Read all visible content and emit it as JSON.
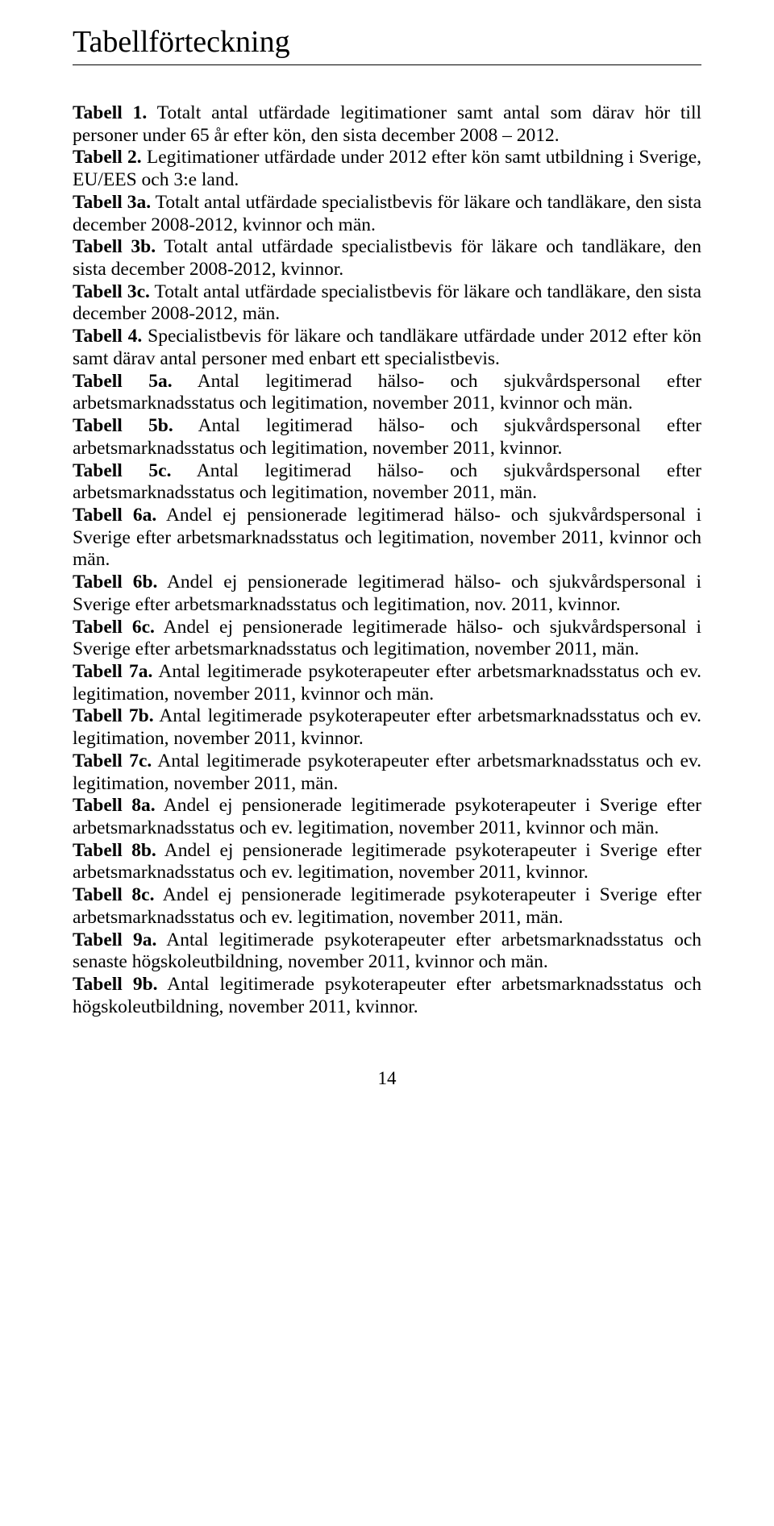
{
  "title": "Tabellförteckning",
  "entries": [
    {
      "label": "Tabell 1.",
      "text": " Totalt antal utfärdade legitimationer samt antal som därav hör till personer under 65 år efter kön, den sista december 2008 – 2012."
    },
    {
      "label": "Tabell 2.",
      "text": " Legitimationer utfärdade under 2012 efter kön samt utbildning i Sverige, EU/EES och 3:e land."
    },
    {
      "label": "Tabell 3a.",
      "text": " Totalt antal utfärdade specialistbevis för läkare och tandläkare, den sista december 2008-2012, kvinnor och män."
    },
    {
      "label": "Tabell 3b.",
      "text": " Totalt antal utfärdade specialistbevis för läkare och tandläkare, den sista december 2008-2012, kvinnor."
    },
    {
      "label": "Tabell 3c.",
      "text": " Totalt antal utfärdade specialistbevis för läkare och tandläkare, den sista december 2008-2012, män."
    },
    {
      "label": "Tabell 4.",
      "text": " Specialistbevis för läkare och tandläkare utfärdade under 2012 efter kön samt därav antal personer med enbart ett specialistbevis."
    },
    {
      "label": "Tabell 5a.",
      "text": " Antal legitimerad hälso- och sjukvårdspersonal efter arbetsmarknadsstatus och legitimation, november 2011, kvinnor och män."
    },
    {
      "label": "Tabell 5b.",
      "text": " Antal legitimerad hälso- och sjukvårdspersonal efter arbetsmarknadsstatus och legitimation, november 2011, kvinnor."
    },
    {
      "label": "Tabell 5c.",
      "text": " Antal legitimerad hälso- och sjukvårdspersonal efter arbetsmarknadsstatus och legitimation, november 2011, män."
    },
    {
      "label": "Tabell 6a.",
      "text": " Andel ej pensionerade legitimerad hälso- och sjukvårdspersonal i Sverige efter arbetsmarknadsstatus och legitimation, november 2011, kvinnor och män."
    },
    {
      "label": "Tabell 6b.",
      "text": " Andel ej pensionerade legitimerad hälso- och sjukvårdspersonal i Sverige efter arbetsmarknadsstatus och legitimation, nov. 2011, kvinnor."
    },
    {
      "label": "Tabell 6c.",
      "text": " Andel ej pensionerade legitimerade hälso- och sjukvårdspersonal i Sverige efter arbetsmarknadsstatus och legitimation, november 2011, män."
    },
    {
      "label": "Tabell 7a.",
      "text": " Antal legitimerade psykoterapeuter efter arbetsmarknadsstatus och ev. legitimation, november 2011, kvinnor och män."
    },
    {
      "label": "Tabell 7b.",
      "text": " Antal legitimerade psykoterapeuter efter arbetsmarknadsstatus och ev. legitimation, november 2011, kvinnor."
    },
    {
      "label": "Tabell 7c.",
      "text": " Antal legitimerade psykoterapeuter efter arbetsmarknadsstatus och ev. legitimation, november 2011, män."
    },
    {
      "label": "Tabell 8a.",
      "text": " Andel ej pensionerade legitimerade psykoterapeuter i Sverige efter arbetsmarknadsstatus och ev. legitimation, november 2011, kvinnor och män."
    },
    {
      "label": "Tabell 8b.",
      "text": " Andel ej pensionerade legitimerade psykoterapeuter i Sverige efter arbetsmarknadsstatus och ev. legitimation, november 2011, kvinnor."
    },
    {
      "label": "Tabell 8c.",
      "text": " Andel ej pensionerade legitimerade psykoterapeuter i Sverige efter arbetsmarknadsstatus och ev. legitimation, november 2011, män."
    },
    {
      "label": "Tabell 9a.",
      "text": " Antal legitimerade psykoterapeuter efter arbetsmarknadsstatus och senaste högskoleutbildning, november 2011, kvinnor och män."
    },
    {
      "label": "Tabell 9b.",
      "text": " Antal legitimerade psykoterapeuter efter arbetsmarknadsstatus och högskoleutbildning, november 2011, kvinnor."
    }
  ],
  "pageNumber": "14"
}
